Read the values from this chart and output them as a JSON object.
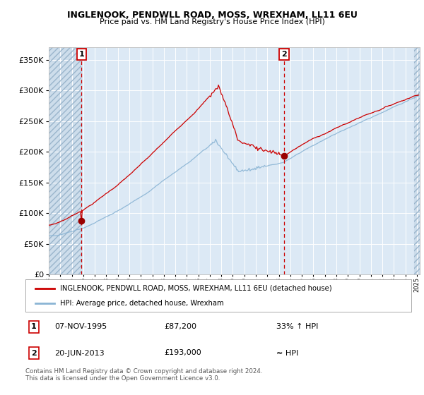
{
  "title": "INGLENOOK, PENDWLL ROAD, MOSS, WREXHAM, LL11 6EU",
  "subtitle": "Price paid vs. HM Land Registry's House Price Index (HPI)",
  "legend_line1": "INGLENOOK, PENDWLL ROAD, MOSS, WREXHAM, LL11 6EU (detached house)",
  "legend_line2": "HPI: Average price, detached house, Wrexham",
  "annotation1_date": "07-NOV-1995",
  "annotation1_price": "£87,200",
  "annotation1_hpi": "33% ↑ HPI",
  "annotation2_date": "20-JUN-2013",
  "annotation2_price": "£193,000",
  "annotation2_hpi": "≈ HPI",
  "footer": "Contains HM Land Registry data © Crown copyright and database right 2024.\nThis data is licensed under the Open Government Licence v3.0.",
  "red_line_color": "#cc0000",
  "blue_line_color": "#8ab4d4",
  "dot_color": "#990000",
  "vline_color": "#cc0000",
  "bg_color": "#dce9f5",
  "grid_color": "#ffffff",
  "ylim": [
    0,
    370000
  ],
  "yticks": [
    0,
    50000,
    100000,
    150000,
    200000,
    250000,
    300000,
    350000
  ],
  "sale1_x": 1995.854,
  "sale1_y": 87200,
  "sale2_x": 2013.464,
  "sale2_y": 193000,
  "xmin": 1993.0,
  "xmax": 2025.25
}
